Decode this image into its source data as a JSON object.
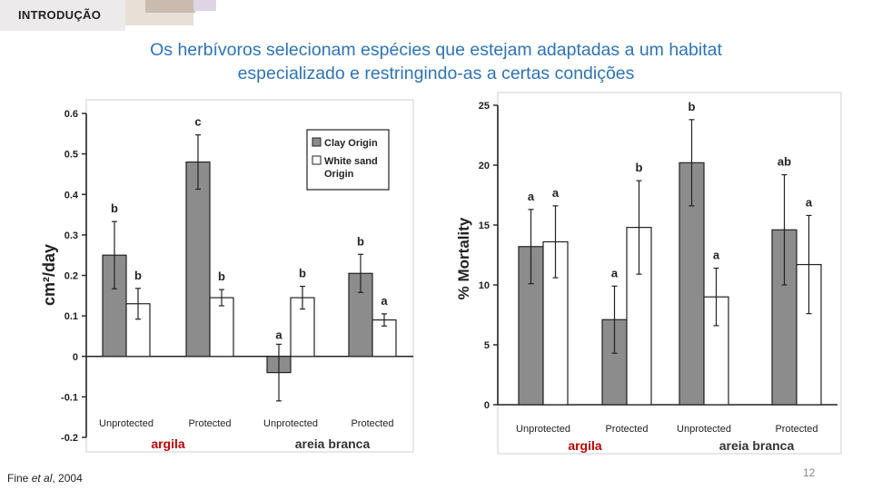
{
  "slide": {
    "section_tag": "INTRODUÇÃO",
    "title_line1": "Os herbívoros selecionam espécies que estejam adaptadas a um habitat",
    "title_line2": "especializado e restringindo-as a certas condições",
    "citation_prefix": "Fine ",
    "citation_etal": "et al",
    "citation_suffix": ", 2004",
    "page_number": "12",
    "colors": {
      "title": "#2e74b5",
      "argila_label": "#c00000",
      "clay_bar": "#8c8c8c",
      "white_bar": "#ffffff"
    }
  },
  "chart_data": [
    {
      "type": "bar",
      "ylabel": "cm²/day",
      "ylim": [
        -0.2,
        0.6
      ],
      "yticks": [
        "0.6",
        "0.5",
        "0.4",
        "0.3",
        "0.2",
        "0.1",
        "0",
        "-0.1",
        "-0.2"
      ],
      "categories": [
        "Unprotected",
        "Protected",
        "Unprotected",
        "Protected"
      ],
      "group_labels": [
        "argila",
        "areia branca"
      ],
      "legend": {
        "position": "top-right",
        "entries": [
          "Clay Origin",
          "White sand Origin"
        ]
      },
      "series": [
        {
          "name": "Clay Origin",
          "values": [
            0.25,
            0.48,
            -0.04,
            0.205
          ],
          "error": [
            0.083,
            0.067,
            0.07,
            0.047
          ],
          "letters": [
            "b",
            "c",
            "a",
            "b"
          ]
        },
        {
          "name": "White sand Origin",
          "values": [
            0.13,
            0.145,
            0.145,
            0.09
          ],
          "error": [
            0.038,
            0.02,
            0.028,
            0.015
          ],
          "letters": [
            "b",
            "b",
            "b",
            "a"
          ]
        }
      ]
    },
    {
      "type": "bar",
      "ylabel": "% Mortality",
      "ylim": [
        0,
        25
      ],
      "yticks": [
        "25",
        "20",
        "15",
        "10",
        "5",
        "0"
      ],
      "categories": [
        "Unprotected",
        "Protected",
        "Unprotected",
        "Protected"
      ],
      "group_labels": [
        "argila",
        "areia branca"
      ],
      "series": [
        {
          "name": "Clay",
          "values": [
            13.2,
            7.1,
            20.2,
            14.6
          ],
          "error": [
            3.1,
            2.8,
            3.6,
            4.6
          ],
          "letters": [
            "a",
            "a",
            "b",
            "ab"
          ]
        },
        {
          "name": "White sand",
          "values": [
            13.6,
            14.8,
            9.0,
            11.7
          ],
          "error": [
            3.0,
            3.9,
            2.4,
            4.1
          ],
          "letters": [
            "a",
            "b",
            "a",
            "a"
          ]
        }
      ]
    }
  ]
}
